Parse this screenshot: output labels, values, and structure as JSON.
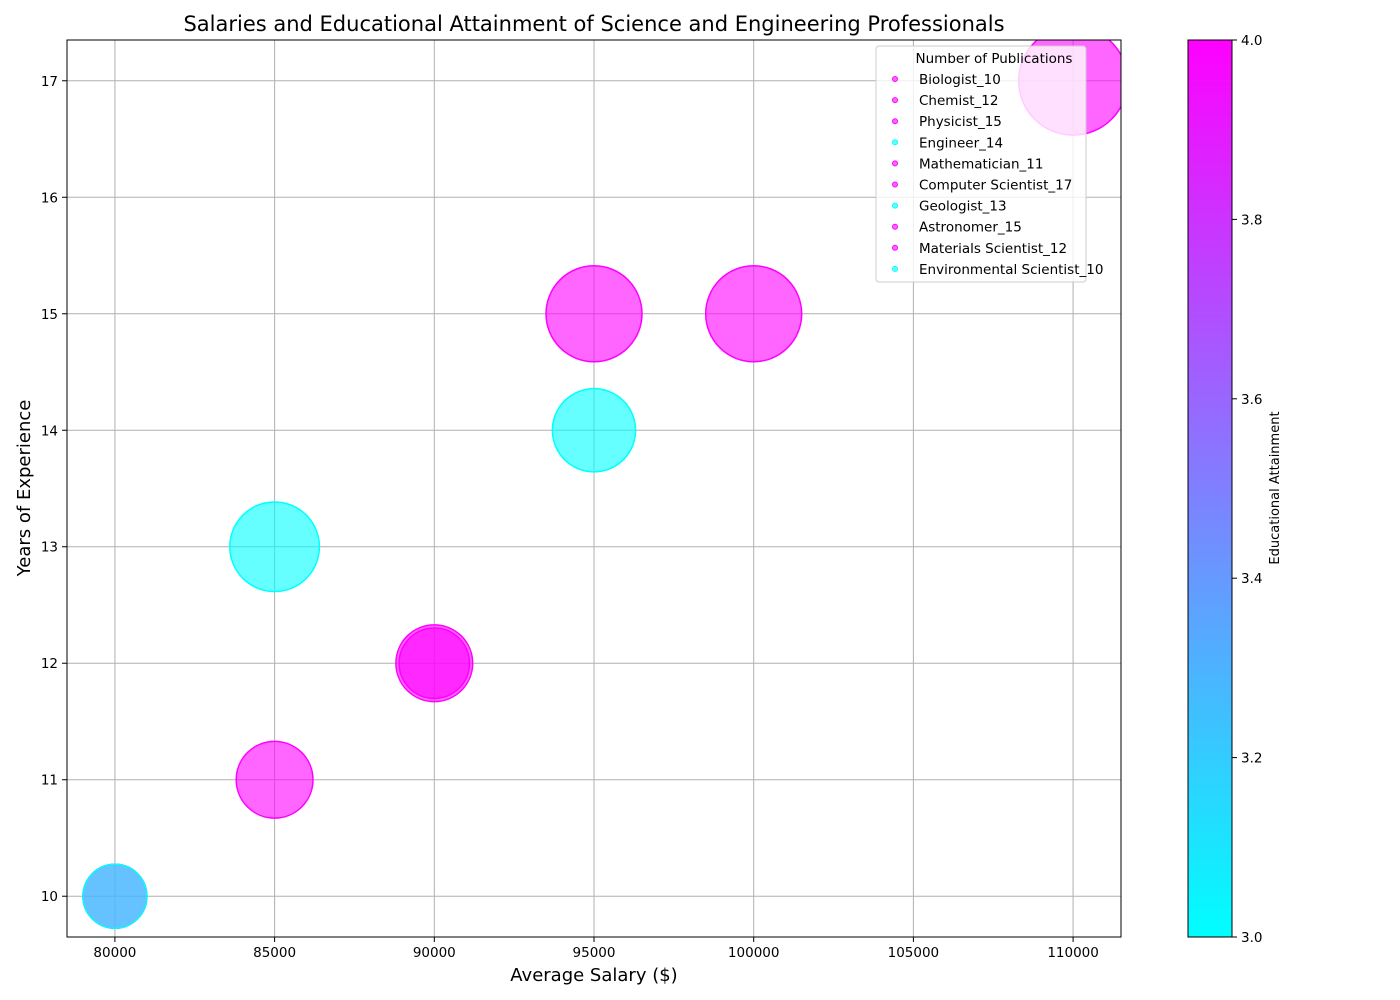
{
  "chart_data": {
    "type": "scatter",
    "title": "Salaries and Educational Attainment of Science and Engineering Professionals",
    "xlabel": "Average Salary ($)",
    "ylabel": "Years of Experience",
    "xlim": [
      78500,
      111500
    ],
    "ylim": [
      9.65,
      17.35
    ],
    "xticks": [
      80000,
      85000,
      90000,
      95000,
      100000,
      105000,
      110000
    ],
    "yticks": [
      10,
      11,
      12,
      13,
      14,
      15,
      16,
      17
    ],
    "grid": true,
    "legend": {
      "title": "Number of Publications",
      "placement": "top-right",
      "entries": [
        "Biologist_10",
        "Chemist_12",
        "Physicist_15",
        "Engineer_14",
        "Mathematician_11",
        "Computer Scientist_17",
        "Geologist_13",
        "Astronomer_15",
        "Materials Scientist_12",
        "Environmental Scientist_10"
      ]
    },
    "colorbar": {
      "label": "Educational Attainment",
      "range": [
        3.0,
        4.0
      ],
      "ticks": [
        "3.0",
        "3.2",
        "3.4",
        "3.6",
        "3.8",
        "4.0"
      ],
      "colormap": [
        "#00ffff",
        "#ff00ff"
      ]
    },
    "points": [
      {
        "name": "Biologist",
        "salary": 80000,
        "experience": 10,
        "publications": 10,
        "education": 4
      },
      {
        "name": "Chemist",
        "salary": 85000,
        "experience": 11,
        "publications": 12,
        "education": 4
      },
      {
        "name": "Physicist",
        "salary": 95000,
        "experience": 15,
        "publications": 15,
        "education": 4
      },
      {
        "name": "Engineer",
        "salary": 85000,
        "experience": 13,
        "publications": 14,
        "education": 3
      },
      {
        "name": "Mathematician",
        "salary": 90000,
        "experience": 12,
        "publications": 11,
        "education": 4
      },
      {
        "name": "Computer Scientist",
        "salary": 110000,
        "experience": 17,
        "publications": 17,
        "education": 4
      },
      {
        "name": "Geologist",
        "salary": 95000,
        "experience": 14,
        "publications": 13,
        "education": 3
      },
      {
        "name": "Astronomer",
        "salary": 100000,
        "experience": 15,
        "publications": 15,
        "education": 4
      },
      {
        "name": "Materials Scientist",
        "salary": 90000,
        "experience": 12,
        "publications": 12,
        "education": 4
      },
      {
        "name": "Environmental Scientist",
        "salary": 80000,
        "experience": 10,
        "publications": 10,
        "education": 3
      }
    ]
  }
}
